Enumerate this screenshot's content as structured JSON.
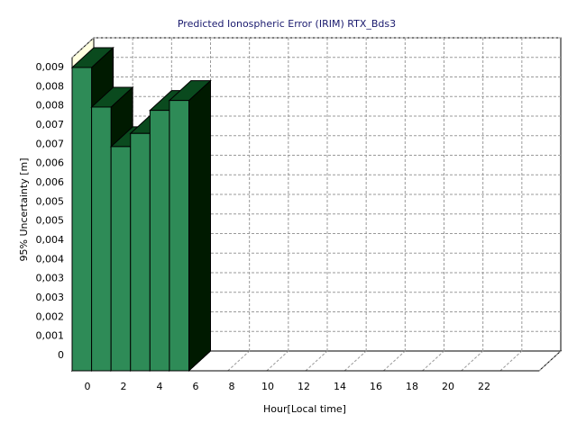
{
  "chart_data": {
    "type": "bar",
    "style": "3d",
    "title": "Predicted Ionospheric Error (IRIM) RTX_Bds3",
    "xlabel": "Hour[Local time]",
    "ylabel": "95% Uncertainty [m]",
    "x": [
      0,
      1,
      2,
      3,
      4,
      5
    ],
    "values": [
      0.0092,
      0.008,
      0.0068,
      0.0072,
      0.0079,
      0.0082
    ],
    "x_range": [
      0,
      24
    ],
    "ylim": [
      0,
      0.0095
    ],
    "x_ticks": [
      "0",
      "2",
      "4",
      "6",
      "8",
      "10",
      "12",
      "14",
      "16",
      "18",
      "20",
      "22"
    ],
    "y_ticks": [
      "0",
      "0,001",
      "0,002",
      "0,003",
      "0,003",
      "0,004",
      "0,004",
      "0,005",
      "0,005",
      "0,006",
      "0,006",
      "0,007",
      "0,007",
      "0,008",
      "0,008",
      "0,009"
    ],
    "grid": true,
    "legend": "none",
    "colors": {
      "bar_front": "#2e8b57",
      "bar_top": "#0a4a1e",
      "bar_side": "#001a00",
      "back_wall": "#ffffff",
      "side_wall": "#ffffe0",
      "grid": "#9a9a9a"
    }
  }
}
